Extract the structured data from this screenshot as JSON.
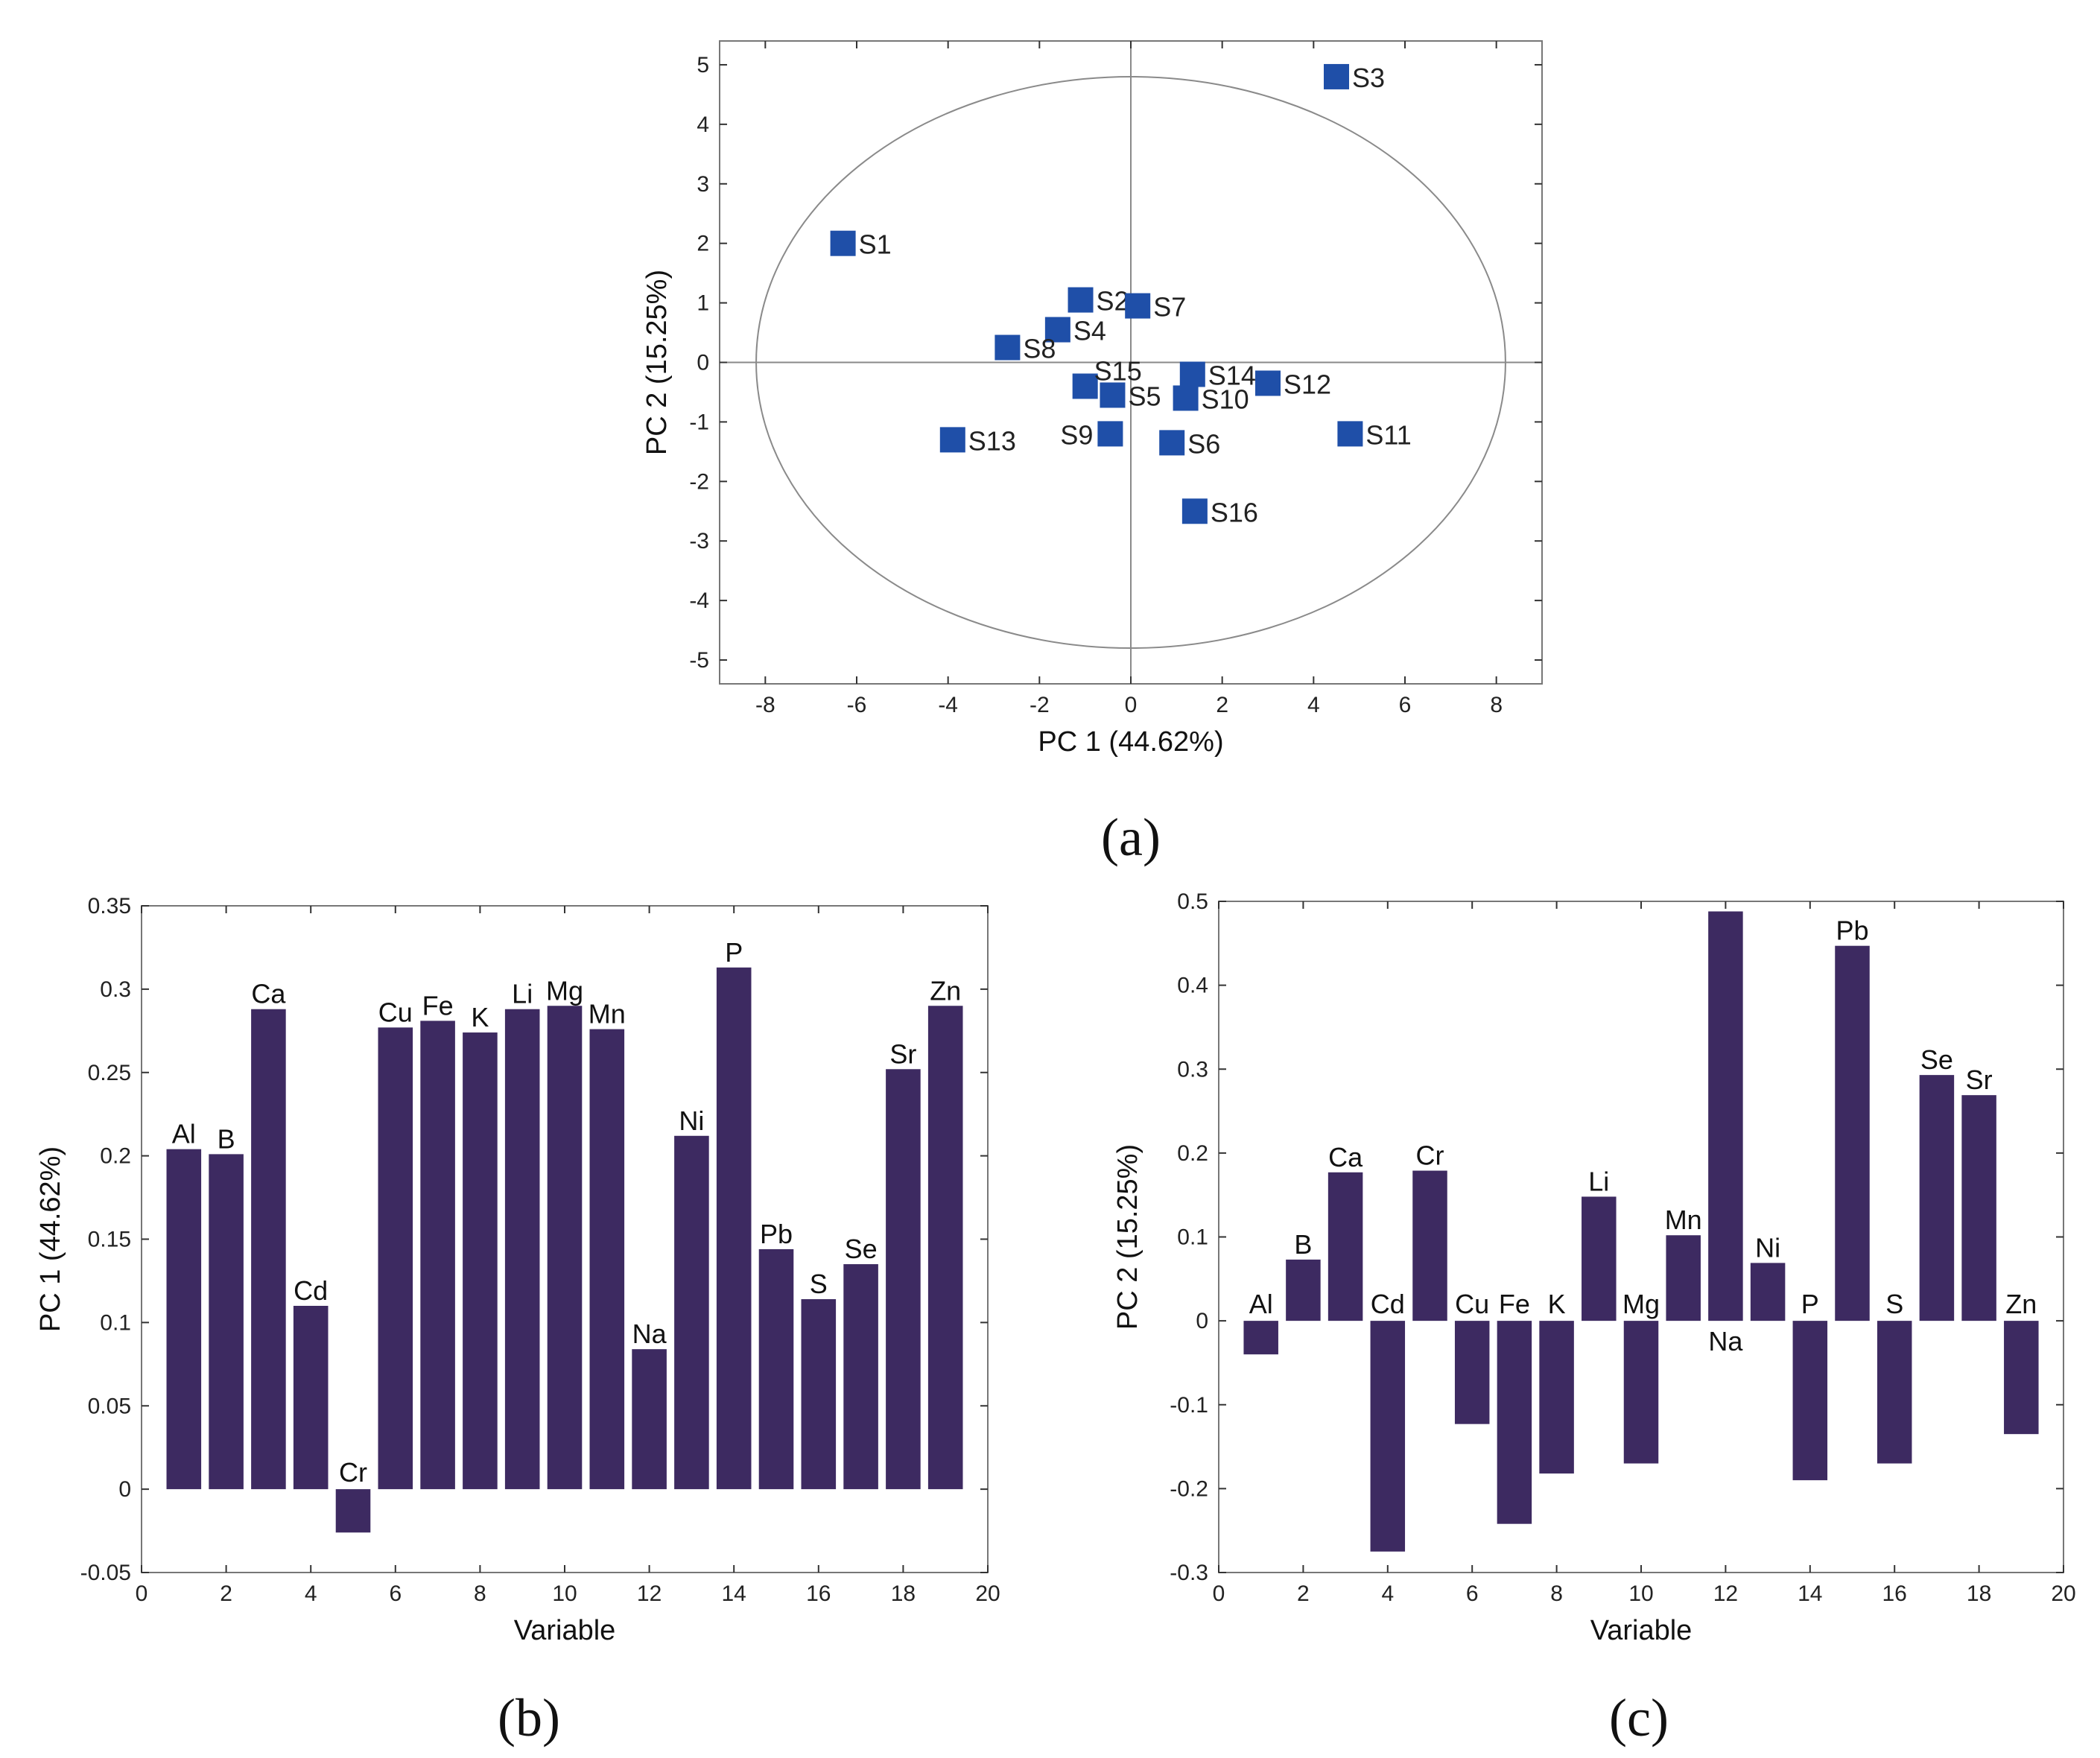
{
  "colors": {
    "bar": "#3d2a61",
    "marker": "#1f4fa8",
    "frame": "#777777",
    "ellipse": "#8a8a8a"
  },
  "chart_data": [
    {
      "id": "a",
      "type": "scatter",
      "panel_label": "(a)",
      "xlabel": "PC 1 (44.62%)",
      "ylabel": "PC 2 (15.25%)",
      "xlim": [
        -9,
        9
      ],
      "ylim": [
        -5.4,
        5.4
      ],
      "xticks": [
        -8,
        -6,
        -4,
        -2,
        0,
        2,
        4,
        6,
        8
      ],
      "yticks": [
        -5,
        -4,
        -3,
        -2,
        -1,
        0,
        1,
        2,
        3,
        4,
        5
      ],
      "ellipse": {
        "cx": 0,
        "cy": 0,
        "rx": 8.2,
        "ry": 4.8
      },
      "points": [
        {
          "label": "S1",
          "x": -6.3,
          "y": 2.0,
          "pos": "right"
        },
        {
          "label": "S2",
          "x": -1.1,
          "y": 1.05,
          "pos": "right"
        },
        {
          "label": "S3",
          "x": 4.5,
          "y": 4.8,
          "pos": "right"
        },
        {
          "label": "S4",
          "x": -1.6,
          "y": 0.55,
          "pos": "right"
        },
        {
          "label": "S5",
          "x": -0.4,
          "y": -0.55,
          "pos": "right"
        },
        {
          "label": "S6",
          "x": 0.9,
          "y": -1.35,
          "pos": "right"
        },
        {
          "label": "S7",
          "x": 0.15,
          "y": 0.95,
          "pos": "right"
        },
        {
          "label": "S8",
          "x": -2.7,
          "y": 0.25,
          "pos": "right"
        },
        {
          "label": "S9",
          "x": -0.45,
          "y": -1.2,
          "pos": "left"
        },
        {
          "label": "S10",
          "x": 1.2,
          "y": -0.6,
          "pos": "right"
        },
        {
          "label": "S11",
          "x": 4.8,
          "y": -1.2,
          "pos": "right"
        },
        {
          "label": "S12",
          "x": 3.0,
          "y": -0.35,
          "pos": "right"
        },
        {
          "label": "S13",
          "x": -3.9,
          "y": -1.3,
          "pos": "right"
        },
        {
          "label": "S14",
          "x": 1.35,
          "y": -0.2,
          "pos": "right"
        },
        {
          "label": "S15",
          "x": -1.0,
          "y": -0.4,
          "pos": "above"
        },
        {
          "label": "S16",
          "x": 1.4,
          "y": -2.5,
          "pos": "right"
        }
      ]
    },
    {
      "id": "b",
      "type": "bar",
      "panel_label": "(b)",
      "xlabel": "Variable",
      "ylabel": "PC 1 (44.62%)",
      "xlim": [
        0,
        20
      ],
      "ylim": [
        -0.05,
        0.35
      ],
      "xticks": [
        0,
        2,
        4,
        6,
        8,
        10,
        12,
        14,
        16,
        18,
        20
      ],
      "yticks": [
        -0.05,
        0,
        0.05,
        0.1,
        0.15,
        0.2,
        0.25,
        0.3,
        0.35
      ],
      "ytick_labels": [
        "-0.05",
        "0",
        "0.05",
        "0.1",
        "0.15",
        "0.2",
        "0.25",
        "0.3",
        "0.35"
      ],
      "categories": [
        "Al",
        "B",
        "Ca",
        "Cd",
        "Cr",
        "Cu",
        "Fe",
        "K",
        "Li",
        "Mg",
        "Mn",
        "Na",
        "Ni",
        "P",
        "Pb",
        "S",
        "Se",
        "Sr",
        "Zn"
      ],
      "values": [
        0.204,
        0.201,
        0.288,
        0.11,
        -0.026,
        0.277,
        0.281,
        0.274,
        0.288,
        0.29,
        0.276,
        0.084,
        0.212,
        0.313,
        0.144,
        0.114,
        0.135,
        0.252,
        0.29
      ]
    },
    {
      "id": "c",
      "type": "bar",
      "panel_label": "(c)",
      "xlabel": "Variable",
      "ylabel": "PC 2 (15.25%)",
      "xlim": [
        0,
        20
      ],
      "ylim": [
        -0.3,
        0.5
      ],
      "xticks": [
        0,
        2,
        4,
        6,
        8,
        10,
        12,
        14,
        16,
        18,
        20
      ],
      "yticks": [
        -0.3,
        -0.2,
        -0.1,
        0,
        0.1,
        0.2,
        0.3,
        0.4,
        0.5
      ],
      "ytick_labels": [
        "-0.3",
        "-0.2",
        "-0.1",
        "0",
        "0.1",
        "0.2",
        "0.3",
        "0.4",
        "0.5"
      ],
      "categories": [
        "Al",
        "B",
        "Ca",
        "Cd",
        "Cr",
        "Cu",
        "Fe",
        "K",
        "Li",
        "Mg",
        "Mn",
        "Na",
        "Ni",
        "P",
        "Pb",
        "S",
        "Se",
        "Sr",
        "Zn"
      ],
      "values": [
        -0.04,
        0.073,
        0.177,
        -0.275,
        0.179,
        -0.123,
        -0.242,
        -0.182,
        0.148,
        -0.17,
        0.102,
        0.488,
        0.069,
        -0.19,
        0.447,
        -0.17,
        0.293,
        0.269,
        -0.135
      ]
    }
  ]
}
